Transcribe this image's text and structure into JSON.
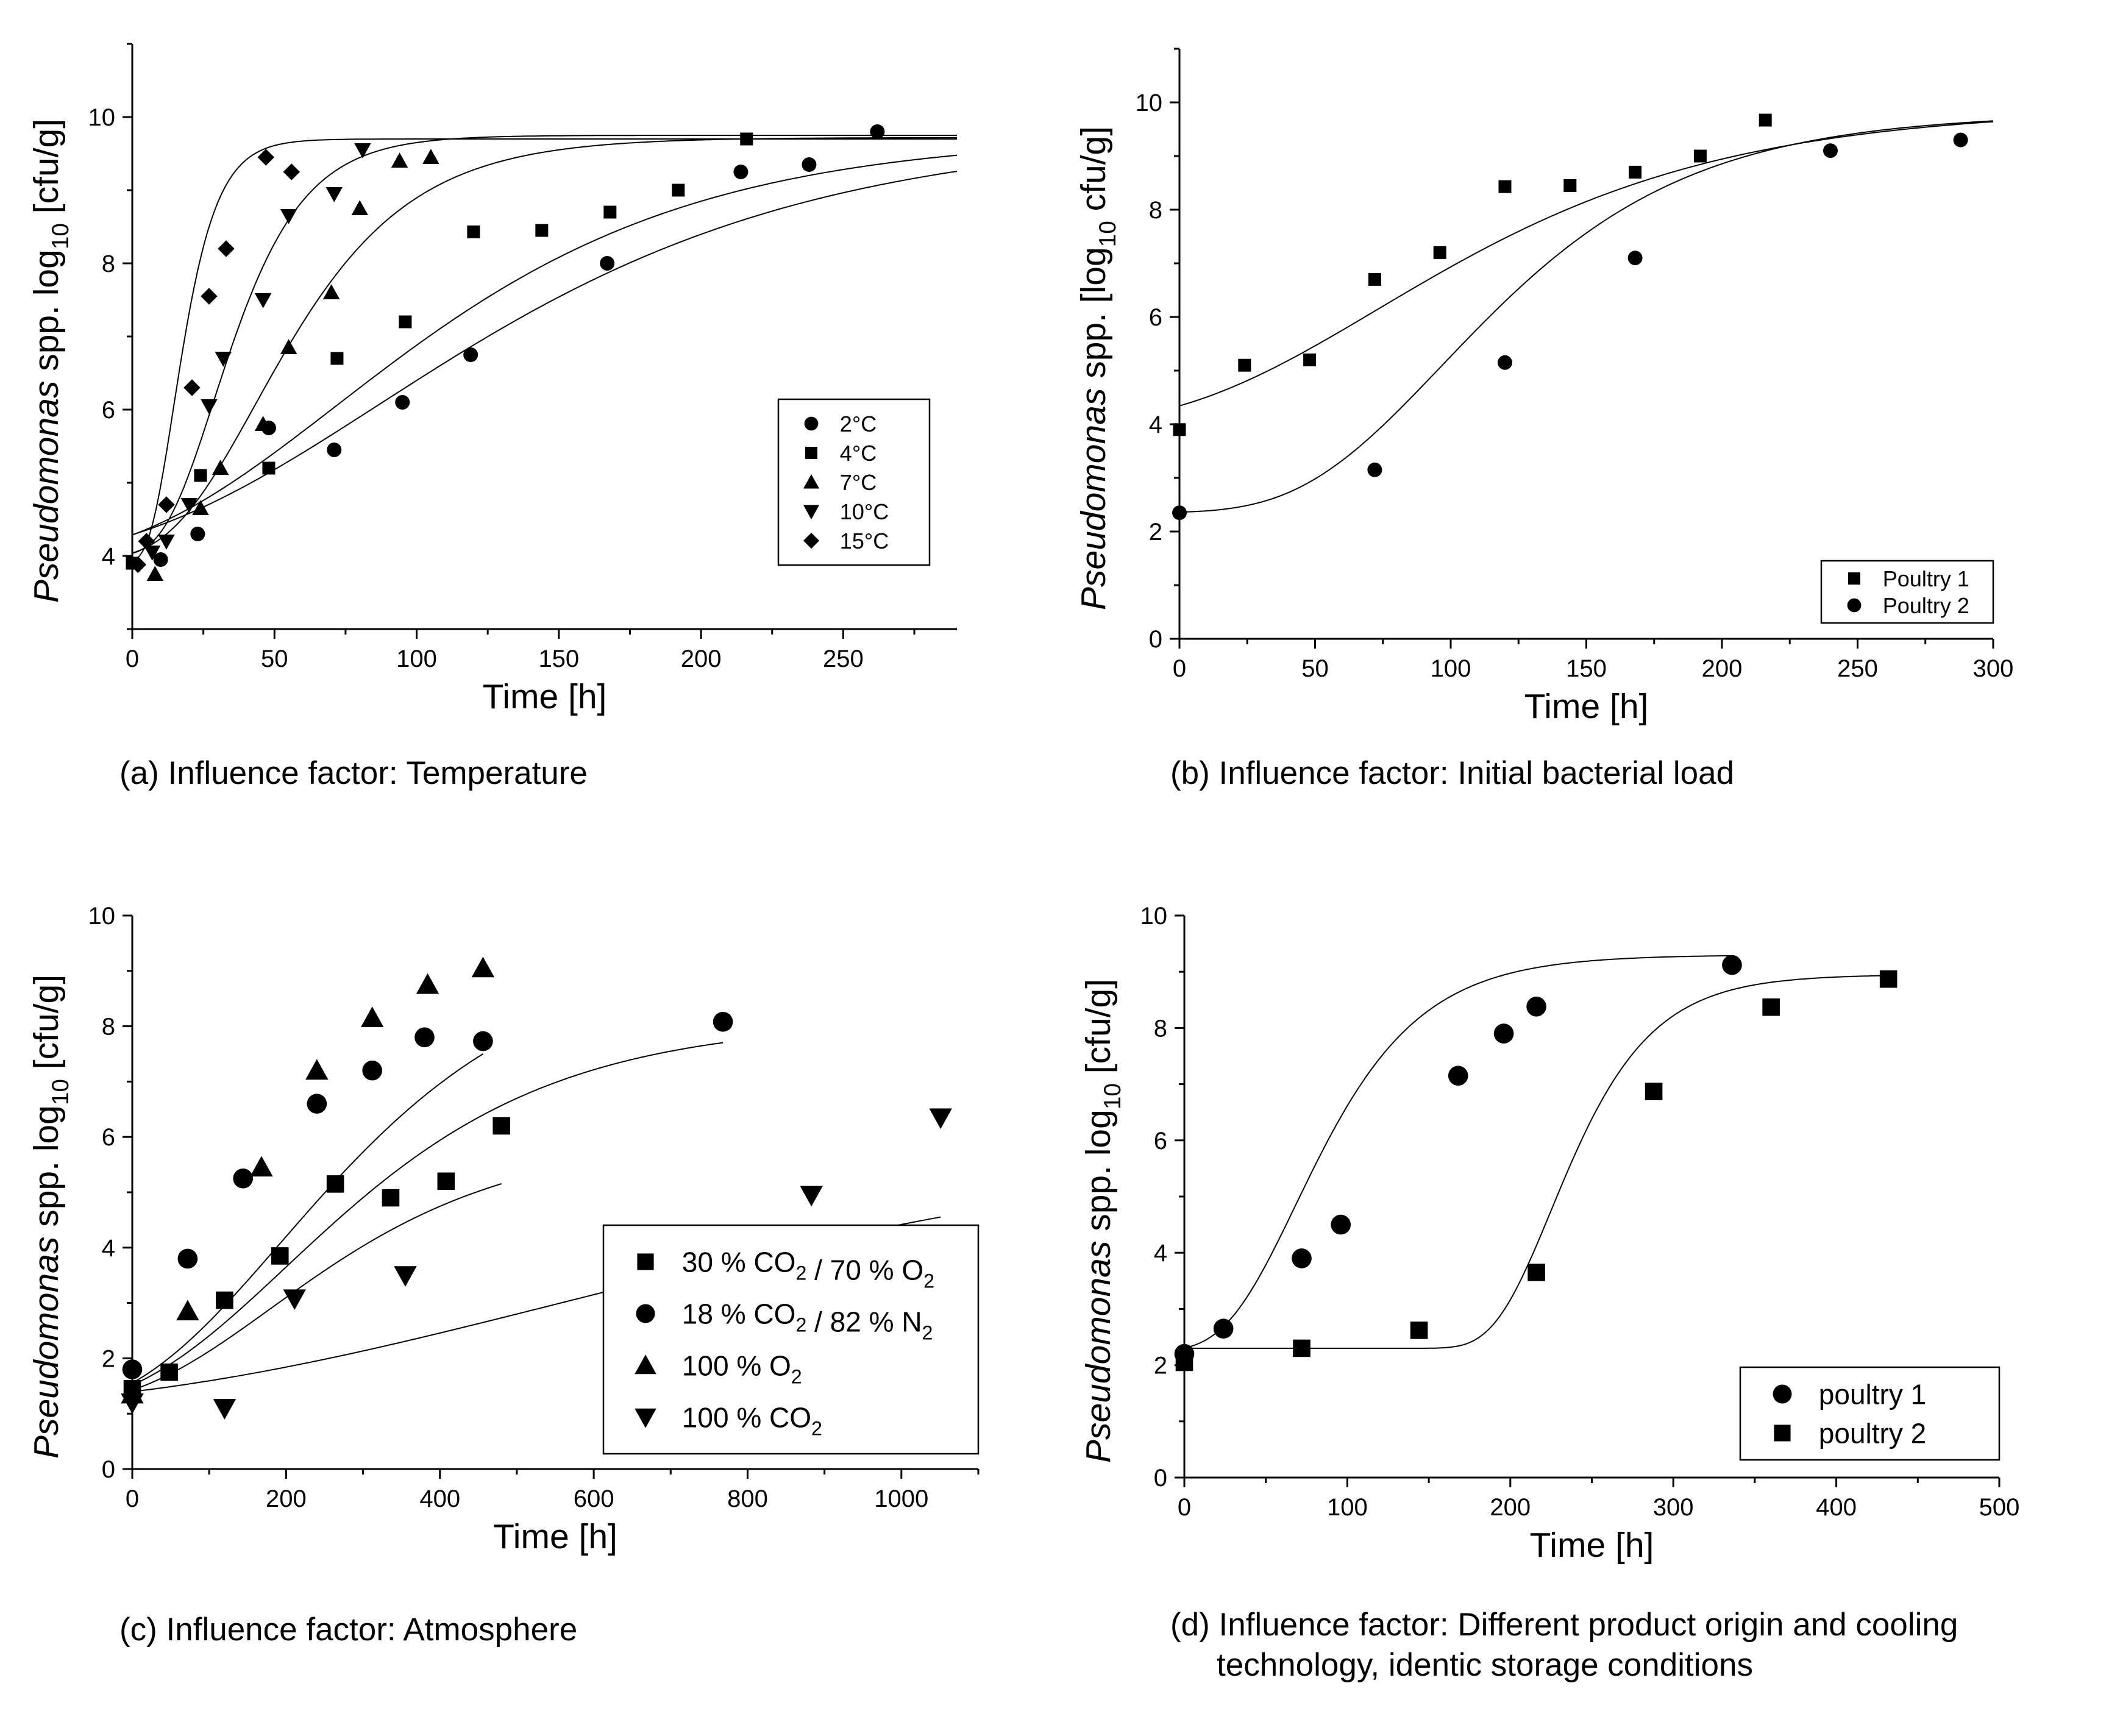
{
  "figure": {
    "captions": {
      "a": "(a) Influence factor: Temperature",
      "b": "(b) Influence factor: Initial bacterial load",
      "c": "(c) Influence factor: Atmosphere",
      "d_line1": "(d) Influence factor: Different product origin and cooling",
      "d_line2": "technology, identic storage conditions"
    }
  },
  "chart_data": [
    {
      "id": "a",
      "type": "scatter",
      "xlabel": "Time [h]",
      "ylabel": "Pseudomonas spp. log10 [cfu/g]",
      "xlim": [
        0,
        290
      ],
      "ylim": [
        3,
        11
      ],
      "xticks": [
        0,
        50,
        100,
        150,
        200,
        250
      ],
      "yticks": [
        4,
        6,
        8,
        10
      ],
      "legend": {
        "position": "right-middle",
        "box": true
      },
      "series": [
        {
          "name": "2°C",
          "marker": "circle",
          "points": [
            [
              10,
              3.95
            ],
            [
              23,
              4.3
            ],
            [
              48,
              5.75
            ],
            [
              71,
              5.45
            ],
            [
              95,
              6.1
            ],
            [
              119,
              6.75
            ],
            [
              167,
              8.0
            ],
            [
              214,
              9.25
            ],
            [
              238,
              9.35
            ],
            [
              262,
              9.8
            ]
          ],
          "fit": {
            "y0": 3.9,
            "ymax": 9.8,
            "rate": 0.025,
            "lag": 0
          }
        },
        {
          "name": "4°C",
          "marker": "square",
          "points": [
            [
              0,
              3.9
            ],
            [
              24,
              5.1
            ],
            [
              48,
              5.2
            ],
            [
              72,
              6.7
            ],
            [
              96,
              7.2
            ],
            [
              120,
              8.43
            ],
            [
              144,
              8.45
            ],
            [
              168,
              8.7
            ],
            [
              192,
              9.0
            ],
            [
              216,
              9.7
            ]
          ],
          "fit": {
            "y0": 3.9,
            "ymax": 9.75,
            "rate": 0.03,
            "lag": 0
          }
        },
        {
          "name": "7°C",
          "marker": "triangle-up",
          "points": [
            [
              8,
              3.75
            ],
            [
              24,
              4.65
            ],
            [
              31,
              5.2
            ],
            [
              46,
              5.8
            ],
            [
              55,
              6.85
            ],
            [
              70,
              7.6
            ],
            [
              80,
              8.75
            ],
            [
              94,
              9.4
            ],
            [
              105,
              9.45
            ]
          ],
          "fit": {
            "y0": 3.95,
            "ymax": 9.72,
            "rate": 0.07,
            "lag": 13
          }
        },
        {
          "name": "10°C",
          "marker": "triangle-down",
          "points": [
            [
              7,
              4.05
            ],
            [
              12,
              4.2
            ],
            [
              20,
              4.7
            ],
            [
              27,
              6.05
            ],
            [
              32,
              6.7
            ],
            [
              46,
              7.5
            ],
            [
              55,
              8.65
            ],
            [
              71,
              8.95
            ],
            [
              81,
              9.55
            ]
          ],
          "fit": {
            "y0": 4.0,
            "ymax": 9.75,
            "rate": 0.12,
            "lag": 11
          }
        },
        {
          "name": "15°C",
          "marker": "diamond",
          "points": [
            [
              2,
              3.88
            ],
            [
              5,
              4.2
            ],
            [
              12,
              4.7
            ],
            [
              21,
              6.3
            ],
            [
              27,
              7.55
            ],
            [
              33,
              8.2
            ],
            [
              47,
              9.45
            ],
            [
              56,
              9.25
            ]
          ],
          "fit": {
            "y0": 3.9,
            "ymax": 9.7,
            "rate": 0.25,
            "lag": 6
          }
        }
      ]
    },
    {
      "id": "b",
      "type": "scatter",
      "xlabel": "Time [h]",
      "ylabel": "Pseudomonas spp. [log10 cfu/g]",
      "xlim": [
        0,
        300
      ],
      "ylim": [
        0,
        11
      ],
      "xticks": [
        0,
        50,
        100,
        150,
        200,
        250,
        300
      ],
      "yticks": [
        0,
        2,
        4,
        6,
        8,
        10
      ],
      "legend": {
        "position": "bottom-right",
        "box": true
      },
      "series": [
        {
          "name": "Poultry 1",
          "marker": "square",
          "points": [
            [
              0,
              3.9
            ],
            [
              24,
              5.1
            ],
            [
              48,
              5.2
            ],
            [
              72,
              6.7
            ],
            [
              96,
              7.2
            ],
            [
              120,
              8.43
            ],
            [
              144,
              8.45
            ],
            [
              168,
              8.7
            ],
            [
              192,
              9.0
            ],
            [
              216,
              9.67
            ]
          ],
          "fit": {
            "y0": 3.95,
            "ymax": 9.9,
            "rate": 0.03,
            "lag": 0
          }
        },
        {
          "name": "Poultry 2",
          "marker": "circle",
          "points": [
            [
              0,
              2.35
            ],
            [
              72,
              3.15
            ],
            [
              120,
              5.15
            ],
            [
              168,
              7.1
            ],
            [
              240,
              9.1
            ],
            [
              288,
              9.3
            ]
          ],
          "fit": {
            "y0": 2.35,
            "ymax": 9.8,
            "rate": 0.053,
            "lag": 45
          }
        }
      ]
    },
    {
      "id": "c",
      "type": "scatter",
      "xlabel": "Time [h]",
      "ylabel": "Pseudomonas spp. log10 [cfu/g]",
      "xlim": [
        0,
        1100
      ],
      "ylim": [
        0,
        10
      ],
      "xticks": [
        0,
        200,
        400,
        600,
        800,
        1000
      ],
      "yticks": [
        0,
        2,
        4,
        6,
        8,
        10
      ],
      "legend": {
        "position": "bottom-right",
        "box": true
      },
      "series": [
        {
          "name": "30 % CO2 / 70 % O2",
          "marker": "square",
          "points": [
            [
              0,
              1.45
            ],
            [
              48,
              1.75
            ],
            [
              120,
              3.05
            ],
            [
              192,
              3.85
            ],
            [
              264,
              5.15
            ],
            [
              336,
              4.9
            ],
            [
              408,
              5.2
            ],
            [
              480,
              6.2
            ]
          ],
          "fit": {
            "y0": 1.1,
            "ymax": 6.0,
            "rate": 0.01,
            "lag": 0,
            "x_end": 480
          }
        },
        {
          "name": "18 % CO2 / 82 % N2",
          "marker": "circle",
          "points": [
            [
              0,
              1.8
            ],
            [
              72,
              3.8
            ],
            [
              144,
              5.25
            ],
            [
              240,
              6.6
            ],
            [
              312,
              7.2
            ],
            [
              380,
              7.8
            ],
            [
              456,
              7.73
            ],
            [
              768,
              8.08
            ]
          ],
          "fit": {
            "y0": 1.05,
            "ymax": 8.1,
            "rate": 0.013,
            "lag": 0,
            "x_end": 768
          }
        },
        {
          "name": "100 % O2",
          "marker": "triangle-up",
          "points": [
            [
              0,
              1.35
            ],
            [
              72,
              2.85
            ],
            [
              168,
              5.45
            ],
            [
              240,
              7.2
            ],
            [
              312,
              8.15
            ],
            [
              384,
              8.75
            ],
            [
              456,
              9.05
            ]
          ],
          "fit": {
            "y0": 1.0,
            "ymax": 9.4,
            "rate": 0.016,
            "lag": 0,
            "x_end": 456
          }
        },
        {
          "name": "100 % CO2",
          "marker": "triangle-down",
          "points": [
            [
              0,
              1.2
            ],
            [
              120,
              1.1
            ],
            [
              211,
              3.08
            ],
            [
              355,
              3.5
            ],
            [
              883,
              4.95
            ],
            [
              1051,
              6.35
            ]
          ],
          "fit": {
            "y0": 1.05,
            "ymax": 6.3,
            "rate": 0.0035,
            "lag": 0,
            "x_end": 1051
          }
        }
      ]
    },
    {
      "id": "d",
      "type": "scatter",
      "xlabel": "Time [h]",
      "ylabel": "Pseudomonas spp. log10 [cfu/g]",
      "xlim": [
        0,
        500
      ],
      "ylim": [
        0,
        10
      ],
      "xticks": [
        0,
        100,
        200,
        300,
        400,
        500
      ],
      "yticks": [
        0,
        2,
        4,
        6,
        8,
        10
      ],
      "legend": {
        "position": "bottom-right",
        "box": true
      },
      "series": [
        {
          "name": "poultry 1",
          "marker": "circle",
          "points": [
            [
              0,
              2.2
            ],
            [
              24,
              2.65
            ],
            [
              72,
              3.9
            ],
            [
              96,
              4.5
            ],
            [
              168,
              7.15
            ],
            [
              196,
              7.9
            ],
            [
              216,
              8.38
            ],
            [
              336,
              9.12
            ]
          ],
          "fit": {
            "y0": 2.25,
            "ymax": 9.3,
            "rate": 0.06,
            "lag": 25,
            "x_end": 336
          }
        },
        {
          "name": "poultry 2",
          "marker": "square",
          "points": [
            [
              0,
              2.05
            ],
            [
              72,
              2.3
            ],
            [
              144,
              2.62
            ],
            [
              216,
              3.65
            ],
            [
              288,
              6.87
            ],
            [
              360,
              8.37
            ],
            [
              432,
              8.87
            ]
          ],
          "fit": {
            "y0": 2.3,
            "ymax": 8.95,
            "rate": 0.07,
            "lag": 190,
            "x_end": 432
          }
        }
      ]
    }
  ]
}
